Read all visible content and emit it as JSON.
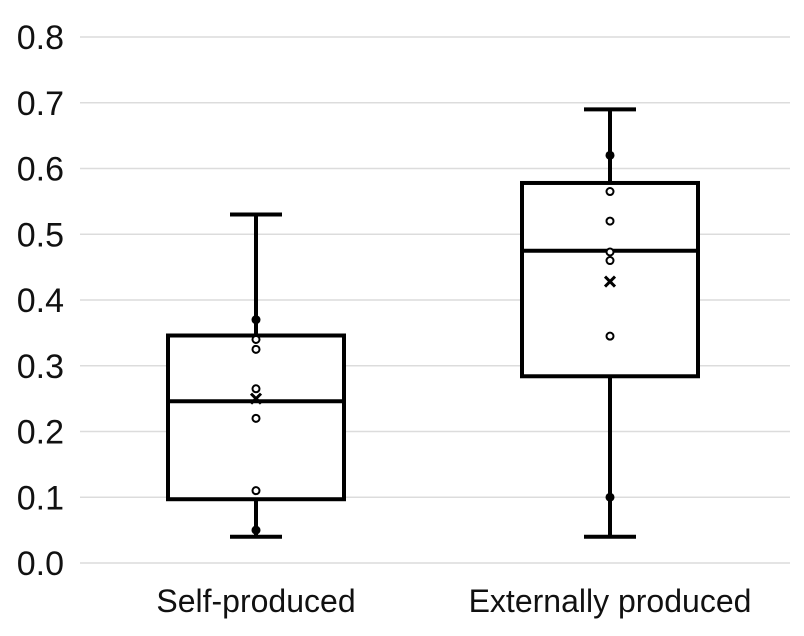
{
  "chart_data": {
    "type": "box",
    "title": "",
    "xlabel": "",
    "ylabel": "",
    "ylim": [
      0,
      0.8
    ],
    "yticks": [
      "0.0",
      "0.1",
      "0.2",
      "0.3",
      "0.4",
      "0.5",
      "0.6",
      "0.7",
      "0.8"
    ],
    "grid": true,
    "categories": [
      "Self-produced",
      "Externally produced"
    ],
    "boxes": [
      {
        "category": "Self-produced",
        "min": 0.04,
        "q1": 0.097,
        "median": 0.246,
        "q3": 0.346,
        "max": 0.53,
        "mean": 0.25,
        "points": [
          0.05,
          0.11,
          0.22,
          0.265,
          0.325,
          0.34,
          0.37
        ]
      },
      {
        "category": "Externally produced",
        "min": 0.04,
        "q1": 0.284,
        "median": 0.475,
        "q3": 0.578,
        "max": 0.69,
        "mean": 0.428,
        "points": [
          0.1,
          0.345,
          0.46,
          0.473,
          0.52,
          0.565,
          0.62
        ]
      }
    ]
  }
}
